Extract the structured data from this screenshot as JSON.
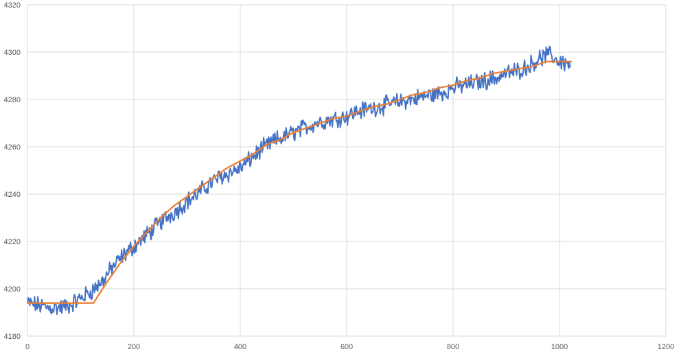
{
  "chart_data": {
    "type": "line",
    "title": "",
    "xlabel": "",
    "ylabel": "",
    "xlim": [
      0,
      1200
    ],
    "ylim": [
      4180,
      4320
    ],
    "x_ticks": [
      0,
      200,
      400,
      600,
      800,
      1000,
      1200
    ],
    "y_ticks": [
      4180,
      4200,
      4220,
      4240,
      4260,
      4280,
      4300,
      4320
    ],
    "x_tick_labels": [
      "0",
      "200",
      "400",
      "600",
      "800",
      "1000",
      "1200"
    ],
    "y_tick_labels": [
      "4180",
      "4200",
      "4220",
      "4240",
      "4260",
      "4280",
      "4300",
      "4320"
    ],
    "grid": true,
    "legend": "none",
    "series": [
      {
        "color": "#4472C4",
        "noise_amplitude": 3,
        "x": [
          0,
          20,
          40,
          60,
          80,
          100,
          120,
          140,
          160,
          180,
          200,
          220,
          240,
          260,
          280,
          300,
          320,
          340,
          360,
          380,
          400,
          420,
          440,
          460,
          480,
          500,
          520,
          540,
          560,
          580,
          600,
          620,
          640,
          660,
          680,
          700,
          720,
          740,
          760,
          780,
          800,
          820,
          840,
          860,
          880,
          900,
          920,
          940,
          960,
          980,
          1000,
          1020
        ],
        "y": [
          4194,
          4193,
          4192,
          4192,
          4193,
          4196,
          4199,
          4203,
          4209,
          4214,
          4218,
          4222,
          4226,
          4230,
          4233,
          4237,
          4240,
          4244,
          4247,
          4249,
          4251,
          4255,
          4259,
          4262,
          4264,
          4266,
          4268,
          4270,
          4271,
          4272,
          4273,
          4275,
          4276,
          4277,
          4278,
          4279,
          4280,
          4281,
          4282,
          4283,
          4285,
          4286,
          4287,
          4288,
          4289,
          4291,
          4292,
          4294,
          4297,
          4299,
          4296,
          4295
        ]
      },
      {
        "color": "#ED7D31",
        "x": [
          0,
          20,
          40,
          60,
          80,
          100,
          124,
          150,
          175,
          200,
          225,
          250,
          275,
          300,
          325,
          350,
          375,
          400,
          425,
          450,
          475,
          500,
          525,
          550,
          575,
          600,
          625,
          650,
          675,
          700,
          725,
          750,
          775,
          800,
          825,
          850,
          875,
          900,
          925,
          950,
          975,
          1000,
          1022
        ],
        "y": [
          4194,
          4194,
          4194,
          4194,
          4194,
          4194,
          4194,
          4203,
          4211,
          4218,
          4224,
          4230,
          4235,
          4239,
          4243,
          4247,
          4251,
          4254,
          4257,
          4261,
          4263,
          4266,
          4268,
          4270,
          4272,
          4273,
          4275,
          4277,
          4278,
          4280,
          4282,
          4283,
          4285,
          4286,
          4288,
          4289,
          4291,
          4292,
          4293,
          4294,
          4296,
          4296,
          4296
        ]
      }
    ]
  }
}
